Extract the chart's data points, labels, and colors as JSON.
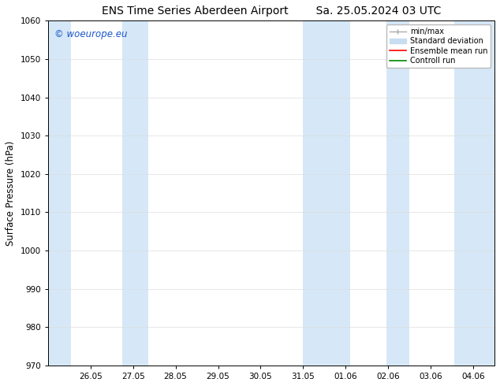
{
  "title_left": "ENS Time Series Aberdeen Airport",
  "title_right": "Sa. 25.05.2024 03 UTC",
  "ylabel": "Surface Pressure (hPa)",
  "ylim": [
    970,
    1060
  ],
  "yticks": [
    970,
    980,
    990,
    1000,
    1010,
    1020,
    1030,
    1040,
    1050,
    1060
  ],
  "xtick_labels": [
    "26.05",
    "27.05",
    "28.05",
    "29.05",
    "30.05",
    "31.05",
    "01.06",
    "02.06",
    "03.06",
    "04.06"
  ],
  "watermark": "© woeurope.eu",
  "watermark_color": "#1a56cc",
  "background_color": "#ffffff",
  "plot_bg_color": "#ffffff",
  "band_color": "#d6e8f7",
  "legend_minmax_color": "#aaaaaa",
  "legend_std_color": "#c8ddf0",
  "legend_mean_color": "#ff0000",
  "legend_control_color": "#008800",
  "title_fontsize": 10,
  "tick_fontsize": 7.5,
  "ylabel_fontsize": 8.5,
  "watermark_fontsize": 8.5
}
